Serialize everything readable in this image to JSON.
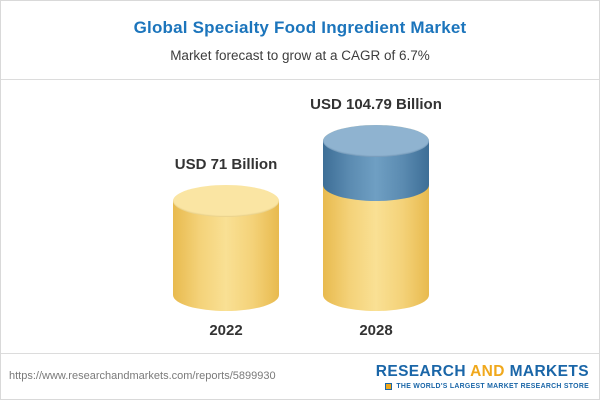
{
  "header": {
    "title": "Global Specialty Food Ingredient Market",
    "subtitle": "Market forecast to grow at a CAGR of 6.7%"
  },
  "chart_data": {
    "type": "bar",
    "variant": "3d-cylinder",
    "title": "Global Specialty Food Ingredient Market",
    "subtitle": "Market forecast to grow at a CAGR of 6.7%",
    "categories": [
      "2022",
      "2028"
    ],
    "values": [
      71,
      104.79
    ],
    "value_labels": [
      "USD 71 Billion",
      "USD 104.79 Billion"
    ],
    "unit": "USD Billion",
    "cagr_percent": 6.7,
    "ylim": [
      0,
      110
    ],
    "grid": false,
    "legend": false,
    "colors": {
      "bar_2022": "#f4d279",
      "bar_2028_base": "#f4d279",
      "bar_2028_growth": "#5b8bb1",
      "title": "#1c75bc",
      "label": "#333333"
    }
  },
  "footer": {
    "url": "https://www.researchandmarkets.com/reports/5899930",
    "brand": {
      "word1": "RESEARCH",
      "word2": "AND",
      "word3": "MARKETS",
      "tagline": "THE WORLD'S LARGEST MARKET RESEARCH STORE"
    }
  }
}
